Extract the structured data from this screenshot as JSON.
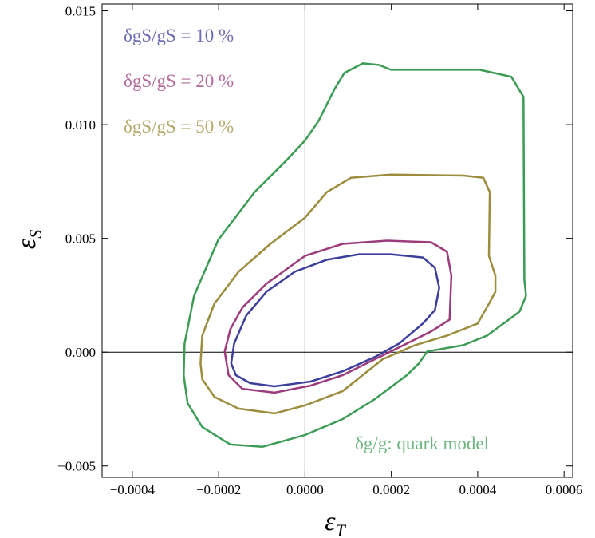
{
  "chart_data": {
    "type": "contour",
    "x_label": {
      "main": "ε",
      "sub": "T"
    },
    "y_label": {
      "main": "ε",
      "sub": "S"
    },
    "annotation": "δg/g:  quark model",
    "xlim": [
      -0.00047,
      0.00062
    ],
    "ylim": [
      -0.0055,
      0.0153
    ],
    "xticks": [
      {
        "value": -0.0004,
        "label": "−0.0004"
      },
      {
        "value": -0.0002,
        "label": "−0.0002"
      },
      {
        "value": 0,
        "label": "0.0000"
      },
      {
        "value": 0.0002,
        "label": "0.0002"
      },
      {
        "value": 0.0004,
        "label": "0.0004"
      },
      {
        "value": 0.0006,
        "label": "0.0006"
      }
    ],
    "yticks": [
      {
        "value": -0.005,
        "label": "−0.005"
      },
      {
        "value": 0,
        "label": "0.000"
      },
      {
        "value": 0.005,
        "label": "0.005"
      },
      {
        "value": 0.01,
        "label": "0.010"
      },
      {
        "value": 0.015,
        "label": "0.015"
      }
    ],
    "series": [
      {
        "name": "δgS/gS = 10 %",
        "color": "#3c3e9c",
        "x": [
          -0.000171,
          -0.000164,
          -0.000136,
          -8.93e-05,
          -2.42e-05,
          5.02e-05,
          0.000125,
          0.000199,
          0.000273,
          0.000301,
          0.000311,
          0.000301,
          0.000273,
          0.000218,
          0.000162,
          8.74e-05,
          1.3e-05,
          -7.07e-05,
          -0.000127,
          -0.00016
        ],
        "y": [
          -0.00049,
          0.00038,
          0.00161,
          0.00266,
          0.00353,
          0.00406,
          0.0043,
          0.0043,
          0.00416,
          0.00371,
          0.00283,
          0.00185,
          0.00126,
          0.00038,
          -0.00021,
          -0.00084,
          -0.00129,
          -0.0015,
          -0.00136,
          -0.00101
        ]
      },
      {
        "name": "δgS/gS = 20 %",
        "color": "#9b3b7c",
        "x": [
          -0.000186,
          -0.000173,
          -0.000145,
          -8.93e-05,
          0,
          8.74e-05,
          0.00019,
          0.000292,
          0.000329,
          0.000339,
          0.000335,
          0.000292,
          0.000236,
          0.000162,
          8.74e-05,
          1.3e-05,
          -7.07e-05,
          -0.000145,
          -0.000177
        ],
        "y": [
          3e-05,
          0.00101,
          0.00196,
          0.00301,
          0.00423,
          0.00476,
          0.0049,
          0.00483,
          0.00441,
          0.00336,
          0.00143,
          0.00091,
          0.00038,
          -0.00031,
          -0.00101,
          -0.00147,
          -0.00178,
          -0.00161,
          -0.00101
        ]
      },
      {
        "name": "δgS/gS = 50 %",
        "color": "#9c8c3c",
        "x": [
          -0.000242,
          -0.000238,
          -0.00021,
          -0.000154,
          -8e-05,
          0,
          5.02e-05,
          0.000106,
          0.000199,
          0.000367,
          0.000413,
          0.000428,
          0.000426,
          0.000441,
          0.000441,
          0.000426,
          0.0004,
          0.000367,
          0.000329,
          0.000255,
          0.00018,
          8.74e-05,
          0,
          -7.07e-05,
          -0.000154,
          -0.00021,
          -0.000238
        ],
        "y": [
          -0.00049,
          0.00073,
          0.00213,
          0.00353,
          0.00476,
          0.00591,
          0.00703,
          0.00766,
          0.0078,
          0.00776,
          0.00766,
          0.00703,
          0.00423,
          0.00336,
          0.00266,
          0.00213,
          0.00126,
          0.00101,
          0.00073,
          0.00031,
          -0.00031,
          -0.00171,
          -0.00234,
          -0.00269,
          -0.00248,
          -0.00196,
          -0.00119
        ]
      },
      {
        "color": "#3c9c55",
        "x": [
          -0.000281,
          -0.000279,
          -0.000257,
          -0.000201,
          -0.000117,
          -4.28e-05,
          0,
          3.16e-05,
          6.88e-05,
          9.12e-05,
          0.000134,
          0.000171,
          0.000199,
          0.000404,
          0.000478,
          0.000506,
          0.000508,
          0.000512,
          0.000497,
          0.00046,
          0.000422,
          0.000367,
          0.000283,
          0.000264,
          0.000236,
          0.000162,
          8.74e-05,
          0,
          -9.86e-05,
          -0.000173,
          -0.000238,
          -0.000272
        ],
        "y": [
          -0.00101,
          0.00038,
          0.00248,
          0.00493,
          0.00703,
          0.00843,
          0.0093,
          0.01017,
          0.01157,
          0.01227,
          0.01269,
          0.01262,
          0.01241,
          0.01241,
          0.0121,
          0.01122,
          0.00318,
          0.00248,
          0.00178,
          0.00126,
          0.00073,
          0.00031,
          3e-05,
          -0.00049,
          -0.00101,
          -0.00206,
          -0.00294,
          -0.00364,
          -0.00416,
          -0.00406,
          -0.00329,
          -0.00224
        ]
      }
    ]
  }
}
